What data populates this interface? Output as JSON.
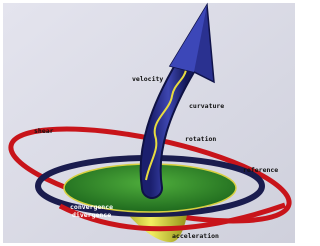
{
  "labels": [
    "velocity",
    "curvature",
    "rotation",
    "shear",
    "reference",
    "convergence",
    "divergence",
    "acceleration"
  ]
}
